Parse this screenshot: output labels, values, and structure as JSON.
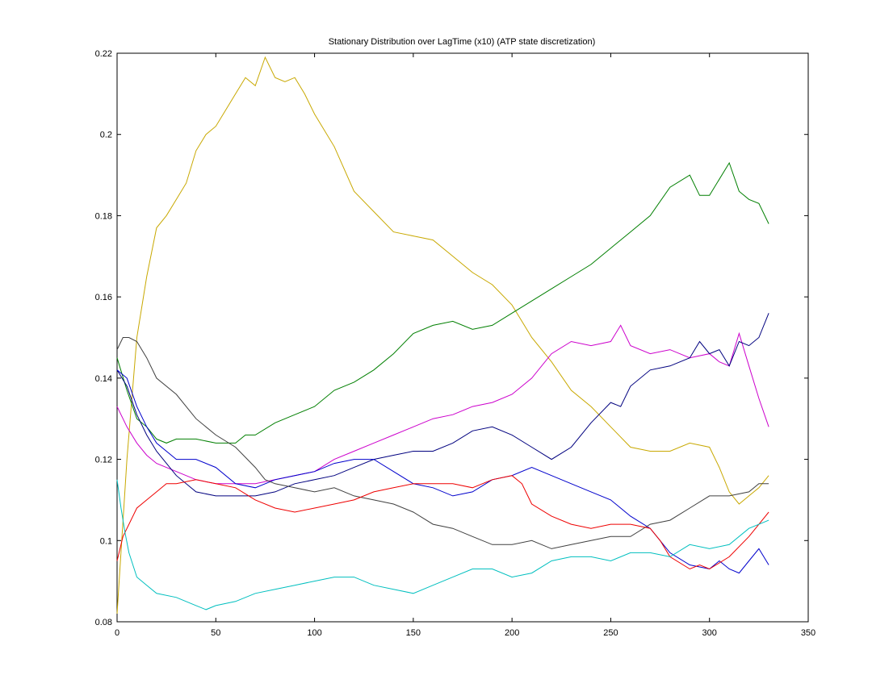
{
  "chart_data": {
    "type": "line",
    "title": "Stationary Distribution over LagTime (x10) (ATP state discretization)",
    "xlabel": "",
    "ylabel": "",
    "xlim": [
      0,
      350
    ],
    "ylim": [
      0.08,
      0.22
    ],
    "xticks": [
      0,
      50,
      100,
      150,
      200,
      250,
      300,
      350
    ],
    "yticks": [
      0.08,
      0.1,
      0.12,
      0.14,
      0.16,
      0.18,
      0.2,
      0.22
    ],
    "xtick_labels": [
      "0",
      "50",
      "100",
      "150",
      "200",
      "250",
      "300",
      "350"
    ],
    "ytick_labels": [
      "0.08",
      "0.1",
      "0.12",
      "0.14",
      "0.16",
      "0.18",
      "0.2",
      "0.22"
    ],
    "grid": false,
    "legend": "none",
    "series": [
      {
        "color": "#c8a800",
        "x": [
          0,
          5,
          10,
          15,
          20,
          25,
          30,
          35,
          40,
          45,
          50,
          55,
          60,
          65,
          70,
          75,
          80,
          85,
          90,
          95,
          100,
          110,
          120,
          130,
          140,
          150,
          160,
          170,
          180,
          190,
          200,
          210,
          220,
          230,
          240,
          250,
          260,
          270,
          280,
          290,
          300,
          305,
          310,
          315,
          320,
          325,
          330
        ],
        "y": [
          0.082,
          0.12,
          0.15,
          0.165,
          0.177,
          0.18,
          0.184,
          0.188,
          0.196,
          0.2,
          0.202,
          0.206,
          0.21,
          0.214,
          0.212,
          0.219,
          0.214,
          0.213,
          0.214,
          0.21,
          0.205,
          0.197,
          0.186,
          0.181,
          0.176,
          0.175,
          0.174,
          0.17,
          0.166,
          0.163,
          0.158,
          0.15,
          0.144,
          0.137,
          0.133,
          0.128,
          0.123,
          0.122,
          0.122,
          0.124,
          0.123,
          0.118,
          0.112,
          0.109,
          0.111,
          0.113,
          0.116
        ]
      },
      {
        "color": "#007f00",
        "x": [
          0,
          5,
          10,
          15,
          20,
          25,
          30,
          40,
          50,
          60,
          65,
          70,
          80,
          90,
          100,
          110,
          120,
          130,
          140,
          150,
          160,
          170,
          180,
          190,
          200,
          210,
          220,
          230,
          240,
          250,
          260,
          270,
          280,
          290,
          295,
          300,
          310,
          315,
          320,
          325,
          330
        ],
        "y": [
          0.145,
          0.137,
          0.13,
          0.128,
          0.125,
          0.124,
          0.125,
          0.125,
          0.124,
          0.124,
          0.126,
          0.126,
          0.129,
          0.131,
          0.133,
          0.137,
          0.139,
          0.142,
          0.146,
          0.151,
          0.153,
          0.154,
          0.152,
          0.153,
          0.156,
          0.159,
          0.162,
          0.165,
          0.168,
          0.172,
          0.176,
          0.18,
          0.187,
          0.19,
          0.185,
          0.185,
          0.193,
          0.186,
          0.184,
          0.183,
          0.178
        ]
      },
      {
        "color": "#cc00cc",
        "x": [
          0,
          5,
          10,
          15,
          20,
          30,
          40,
          50,
          60,
          70,
          80,
          90,
          100,
          110,
          120,
          130,
          140,
          150,
          160,
          170,
          180,
          190,
          200,
          210,
          220,
          230,
          240,
          250,
          255,
          260,
          270,
          280,
          290,
          300,
          305,
          310,
          315,
          320,
          325,
          330
        ],
        "y": [
          0.133,
          0.128,
          0.124,
          0.121,
          0.119,
          0.117,
          0.115,
          0.114,
          0.114,
          0.114,
          0.115,
          0.116,
          0.117,
          0.12,
          0.122,
          0.124,
          0.126,
          0.128,
          0.13,
          0.131,
          0.133,
          0.134,
          0.136,
          0.14,
          0.146,
          0.149,
          0.148,
          0.149,
          0.153,
          0.148,
          0.146,
          0.147,
          0.145,
          0.146,
          0.144,
          0.143,
          0.151,
          0.143,
          0.135,
          0.128
        ]
      },
      {
        "color": "#00007f",
        "x": [
          0,
          5,
          10,
          15,
          20,
          30,
          40,
          50,
          60,
          70,
          80,
          90,
          100,
          110,
          120,
          130,
          140,
          150,
          160,
          170,
          180,
          190,
          200,
          210,
          220,
          230,
          240,
          250,
          255,
          260,
          270,
          280,
          290,
          295,
          300,
          305,
          310,
          315,
          320,
          325,
          330
        ],
        "y": [
          0.142,
          0.138,
          0.131,
          0.126,
          0.122,
          0.116,
          0.112,
          0.111,
          0.111,
          0.111,
          0.112,
          0.114,
          0.115,
          0.116,
          0.118,
          0.12,
          0.121,
          0.122,
          0.122,
          0.124,
          0.127,
          0.128,
          0.126,
          0.123,
          0.12,
          0.123,
          0.129,
          0.134,
          0.133,
          0.138,
          0.142,
          0.143,
          0.145,
          0.149,
          0.146,
          0.147,
          0.143,
          0.149,
          0.148,
          0.15,
          0.156
        ]
      },
      {
        "color": "#0000cc",
        "x": [
          0,
          5,
          10,
          15,
          20,
          30,
          40,
          50,
          60,
          70,
          80,
          90,
          100,
          110,
          120,
          130,
          140,
          150,
          160,
          170,
          180,
          190,
          200,
          210,
          220,
          230,
          240,
          250,
          260,
          270,
          280,
          290,
          300,
          305,
          310,
          315,
          320,
          325,
          330
        ],
        "y": [
          0.142,
          0.14,
          0.133,
          0.128,
          0.124,
          0.12,
          0.12,
          0.118,
          0.114,
          0.113,
          0.115,
          0.116,
          0.117,
          0.119,
          0.12,
          0.12,
          0.117,
          0.114,
          0.113,
          0.111,
          0.112,
          0.115,
          0.116,
          0.118,
          0.116,
          0.114,
          0.112,
          0.11,
          0.106,
          0.103,
          0.097,
          0.094,
          0.093,
          0.095,
          0.093,
          0.092,
          0.095,
          0.098,
          0.094
        ]
      },
      {
        "color": "#404040",
        "x": [
          0,
          3,
          6,
          10,
          15,
          20,
          30,
          40,
          50,
          60,
          70,
          75,
          80,
          90,
          100,
          110,
          120,
          130,
          140,
          150,
          160,
          170,
          180,
          190,
          200,
          210,
          220,
          230,
          240,
          250,
          260,
          270,
          280,
          290,
          300,
          310,
          320,
          325,
          330
        ],
        "y": [
          0.147,
          0.15,
          0.15,
          0.149,
          0.145,
          0.14,
          0.136,
          0.13,
          0.126,
          0.123,
          0.118,
          0.115,
          0.114,
          0.113,
          0.112,
          0.113,
          0.111,
          0.11,
          0.109,
          0.107,
          0.104,
          0.103,
          0.101,
          0.099,
          0.099,
          0.1,
          0.098,
          0.099,
          0.1,
          0.101,
          0.101,
          0.104,
          0.105,
          0.108,
          0.111,
          0.111,
          0.112,
          0.114,
          0.114
        ]
      },
      {
        "color": "#ee0000",
        "x": [
          0,
          3,
          6,
          10,
          15,
          20,
          25,
          30,
          40,
          50,
          60,
          70,
          80,
          90,
          100,
          110,
          120,
          130,
          140,
          150,
          160,
          170,
          180,
          190,
          200,
          205,
          210,
          220,
          230,
          240,
          250,
          260,
          270,
          275,
          280,
          290,
          295,
          300,
          310,
          320,
          330
        ],
        "y": [
          0.095,
          0.101,
          0.104,
          0.108,
          0.11,
          0.112,
          0.114,
          0.114,
          0.115,
          0.114,
          0.113,
          0.11,
          0.108,
          0.107,
          0.108,
          0.109,
          0.11,
          0.112,
          0.113,
          0.114,
          0.114,
          0.114,
          0.113,
          0.115,
          0.116,
          0.114,
          0.109,
          0.106,
          0.104,
          0.103,
          0.104,
          0.104,
          0.103,
          0.1,
          0.096,
          0.093,
          0.094,
          0.093,
          0.096,
          0.101,
          0.107
        ]
      },
      {
        "color": "#00bfbf",
        "x": [
          0,
          2,
          4,
          6,
          8,
          10,
          15,
          20,
          30,
          40,
          45,
          50,
          60,
          70,
          80,
          90,
          100,
          110,
          120,
          130,
          140,
          150,
          160,
          170,
          180,
          190,
          200,
          210,
          220,
          230,
          240,
          250,
          260,
          270,
          280,
          290,
          300,
          310,
          320,
          330
        ],
        "y": [
          0.115,
          0.108,
          0.102,
          0.097,
          0.094,
          0.091,
          0.089,
          0.087,
          0.086,
          0.084,
          0.083,
          0.084,
          0.085,
          0.087,
          0.088,
          0.089,
          0.09,
          0.091,
          0.091,
          0.089,
          0.088,
          0.087,
          0.089,
          0.091,
          0.093,
          0.093,
          0.091,
          0.092,
          0.095,
          0.096,
          0.096,
          0.095,
          0.097,
          0.097,
          0.096,
          0.099,
          0.098,
          0.099,
          0.103,
          0.105
        ]
      }
    ]
  }
}
